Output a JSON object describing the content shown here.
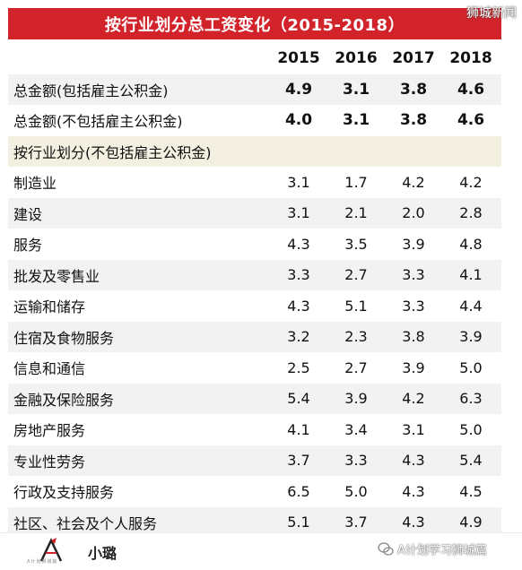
{
  "title": "按行业划分总工资变化（2015-2018）",
  "watermark": "狮城新闻",
  "years": [
    "2015",
    "2016",
    "2017",
    "2018"
  ],
  "rows": [
    {
      "label": "总金额(包括雇主公积金)",
      "values": [
        "4.9",
        "3.1",
        "3.8",
        "4.6"
      ],
      "bold": true
    },
    {
      "label": "总金额(不包括雇主公积金)",
      "values": [
        "4.0",
        "3.1",
        "3.8",
        "4.6"
      ],
      "bold": true
    },
    {
      "label": "按行业划分(不包括雇主公积金)",
      "values": [
        "",
        "",
        "",
        ""
      ],
      "section": true
    },
    {
      "label": "制造业",
      "values": [
        "3.1",
        "1.7",
        "4.2",
        "4.2"
      ]
    },
    {
      "label": "建设",
      "values": [
        "3.1",
        "2.1",
        "2.0",
        "2.8"
      ]
    },
    {
      "label": "服务",
      "values": [
        "4.3",
        "3.5",
        "3.9",
        "4.8"
      ]
    },
    {
      "label": "批发及零售业",
      "values": [
        "3.3",
        "2.7",
        "3.3",
        "4.1"
      ]
    },
    {
      "label": "运输和储存",
      "values": [
        "4.3",
        "5.1",
        "3.3",
        "4.4"
      ]
    },
    {
      "label": "住宿及食物服务",
      "values": [
        "3.2",
        "2.3",
        "3.8",
        "3.9"
      ]
    },
    {
      "label": "信息和通信",
      "values": [
        "2.5",
        "2.7",
        "3.9",
        "5.0"
      ]
    },
    {
      "label": "金融及保险服务",
      "values": [
        "5.4",
        "3.9",
        "4.2",
        "6.3"
      ]
    },
    {
      "label": "房地产服务",
      "values": [
        "4.1",
        "3.4",
        "3.1",
        "5.0"
      ]
    },
    {
      "label": "专业性劳务",
      "values": [
        "3.7",
        "3.3",
        "4.3",
        "5.4"
      ]
    },
    {
      "label": "行政及支持服务",
      "values": [
        "6.5",
        "5.0",
        "4.3",
        "4.5"
      ]
    },
    {
      "label": "社区、社会及个人服务",
      "values": [
        "5.1",
        "3.7",
        "4.3",
        "4.9"
      ]
    }
  ],
  "footer": {
    "brand": "小璐",
    "wechat_label": "A计划学习狮城篇",
    "logo_text": "A计划狮城篇",
    "logo_icon": "a-logo-icon",
    "wechat_icon": "wechat-icon"
  },
  "colors": {
    "title_bg": "#d2232a",
    "alt_row": "#f2f2f2",
    "section_row": "#f4f0e1"
  }
}
